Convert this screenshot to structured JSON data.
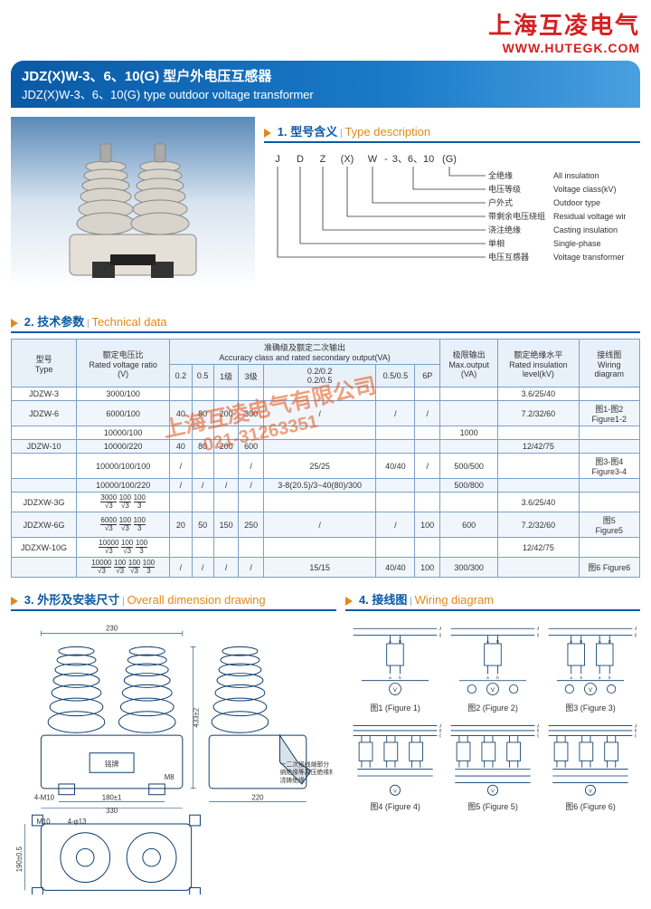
{
  "brand": {
    "name": "上海互凌电气",
    "url": "WWW.HUTEGK.COM",
    "name_color": "#d42020",
    "url_color": "#d42020"
  },
  "title": {
    "cn": "JDZ(X)W-3、6、10(G) 型户外电压互感器",
    "en": "JDZ(X)W-3、6、10(G) type outdoor voltage transformer"
  },
  "watermark": {
    "line1": "上海互凌电气有限公司",
    "line2": "021-31263351"
  },
  "sections": {
    "typedesc": {
      "num": "1.",
      "cn": "型号含义",
      "en": "Type description"
    },
    "techdata": {
      "num": "2.",
      "cn": "技术参数",
      "en": "Technical data"
    },
    "dimension": {
      "num": "3.",
      "cn": "外形及安装尺寸",
      "en": "Overall dimension drawing"
    },
    "wiring": {
      "num": "4.",
      "cn": "接线图",
      "en": "Wiring diagram"
    }
  },
  "typedesc": {
    "code_parts": [
      "J",
      "D",
      "Z",
      "(X)",
      "W",
      "-",
      "3、6、10",
      "(G)"
    ],
    "rows": [
      {
        "cn": "全绝缘",
        "en": "All insulation"
      },
      {
        "cn": "电压等级",
        "en": "Voltage class(kV)"
      },
      {
        "cn": "户外式",
        "en": "Outdoor type"
      },
      {
        "cn": "带剩余电压绕组",
        "en": "Residual voltage winding"
      },
      {
        "cn": "浇注绝缘",
        "en": "Casting insulation"
      },
      {
        "cn": "单相",
        "en": "Single-phase"
      },
      {
        "cn": "电压互感器",
        "en": "Voltage transformer"
      }
    ]
  },
  "table": {
    "headers": {
      "type": {
        "cn": "型号",
        "en": "Type"
      },
      "ratio": {
        "cn": "额定电压比",
        "en": "Rated voltage ratio",
        "unit": "(V)"
      },
      "accuracy": {
        "cn": "准确级及额定二次输出",
        "en": "Accuracy class and rated secondary output(VA)"
      },
      "acc_cols": [
        "0.2",
        "0.5",
        "1级",
        "3级",
        "0.2/0.2\n0.2/0.5",
        "0.5/0.5",
        "6P"
      ],
      "maxout": {
        "cn": "极限输出",
        "en": "Max.output",
        "unit": "(VA)"
      },
      "insul": {
        "cn": "额定绝缘水平",
        "en": "Rated insulation",
        "unit": "level(kV)"
      },
      "wiring": {
        "cn": "接线图",
        "en": "Wiring",
        "unit": "diagram"
      }
    },
    "rows": [
      {
        "type": "JDZW-3",
        "ratio": "3000/100",
        "c": [
          "",
          "",
          "",
          "",
          "",
          "",
          ""
        ],
        "max": "",
        "ins": "3.6/25/40",
        "wir": ""
      },
      {
        "type": "JDZW-6",
        "ratio": "6000/100",
        "c": [
          "40",
          "80",
          "200",
          "300",
          "/",
          "/",
          "/"
        ],
        "max": "",
        "ins": "7.2/32/60",
        "wir": "图1-图2\nFigure1-2",
        "alt": true
      },
      {
        "type": "",
        "ratio": "10000/100",
        "c": [
          "",
          "",
          "",
          "",
          "",
          "",
          ""
        ],
        "max": "1000",
        "ins": "",
        "wir": ""
      },
      {
        "type": "JDZW-10",
        "ratio": "10000/220",
        "c": [
          "40",
          "80",
          "200",
          "600",
          "",
          "",
          ""
        ],
        "max": "",
        "ins": "12/42/75",
        "wir": "",
        "alt": true
      },
      {
        "type": "",
        "ratio": "10000/100/100",
        "c": [
          "/",
          "",
          "",
          "/",
          "25/25",
          "40/40",
          "/"
        ],
        "max": "500/500",
        "ins": "",
        "wir": "图3-图4\nFigure3-4"
      },
      {
        "type": "",
        "ratio": "10000/100/220",
        "c": [
          "/",
          "/",
          "/",
          "/",
          "3-8(20.5)/3~40(80)/300",
          "",
          ""
        ],
        "max": "500/800",
        "ins": "",
        "wir": "",
        "alt": true
      },
      {
        "type": "JDZXW-3G",
        "ratio_frac": [
          "3000",
          "√3",
          "100",
          "√3",
          "100",
          "3"
        ],
        "c": [
          "",
          "",
          "",
          "",
          "",
          "",
          ""
        ],
        "max": "",
        "ins": "3.6/25/40",
        "wir": ""
      },
      {
        "type": "JDZXW-6G",
        "ratio_frac": [
          "6000",
          "√3",
          "100",
          "√3",
          "100",
          "3"
        ],
        "c": [
          "20",
          "50",
          "150",
          "250",
          "/",
          "/",
          "100"
        ],
        "max": "600",
        "ins": "7.2/32/60",
        "wir": "图5\nFigure5",
        "alt": true
      },
      {
        "type": "JDZXW-10G",
        "ratio_frac": [
          "10000",
          "√3",
          "100",
          "√3",
          "100",
          "3"
        ],
        "c": [
          "",
          "",
          "",
          "",
          "",
          "",
          ""
        ],
        "max": "",
        "ins": "12/42/75",
        "wir": ""
      },
      {
        "type": "",
        "ratio_frac": [
          "10000",
          "√3",
          "100",
          "√3",
          "100",
          "√3",
          "100",
          "3"
        ],
        "c": [
          "/",
          "/",
          "/",
          "/",
          "15/15",
          "40/40",
          "100"
        ],
        "max": "300/300",
        "ins": "",
        "wir": "图6 Figure6",
        "alt": true
      }
    ]
  },
  "dimension": {
    "w_top": "230",
    "height": "433±2",
    "plate": "铭牌",
    "m8": "M8",
    "holes1": "4-M10",
    "inner_w": "180±1",
    "outer_w": "330",
    "side_w": "220",
    "note1": "一二次接线端部分",
    "note2": "纳绝缘等离压绝缘材料",
    "note3": "浇铸绝缘",
    "m10": "M10",
    "holes2": "4-φ13",
    "h2": "190±0.5"
  },
  "wiring_diagrams": [
    {
      "id": 1,
      "cap_cn": "图1",
      "cap_en": "(Figure 1)"
    },
    {
      "id": 2,
      "cap_cn": "图2",
      "cap_en": "(Figure 2)"
    },
    {
      "id": 3,
      "cap_cn": "图3",
      "cap_en": "(Figure 3)"
    },
    {
      "id": 4,
      "cap_cn": "图4",
      "cap_en": "(Figure 4)"
    },
    {
      "id": 5,
      "cap_cn": "图5",
      "cap_en": "(Figure 5)"
    },
    {
      "id": 6,
      "cap_cn": "图6",
      "cap_en": "(Figure 6)"
    }
  ],
  "colors": {
    "primary": "#0a5aa6",
    "accent": "#e08a1a",
    "brand": "#d42020",
    "border": "#7aa0c8",
    "row_alt": "#f0f6fc",
    "header_bg": "#e8f0f8"
  }
}
